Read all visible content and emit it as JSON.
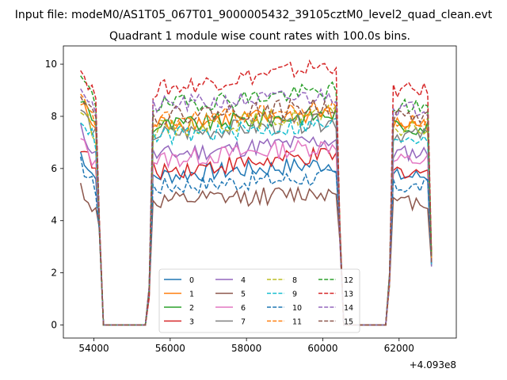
{
  "chart_data": {
    "type": "line",
    "suptitle": "Input file: modeM0/AS1T05_067T01_9000005432_39105cztM0_level2_quad_clean.evt",
    "title": "Quadrant 1 module wise count rates with 100.0s bins.",
    "xlabel": "",
    "ylabel": "",
    "x_offset_label": "+4.093e8",
    "xlim": [
      53200,
      63500
    ],
    "ylim": [
      -0.5,
      10.7
    ],
    "xticks": [
      54000,
      56000,
      58000,
      60000,
      62000
    ],
    "xtick_labels": [
      "54000",
      "56000",
      "58000",
      "60000",
      "62000"
    ],
    "yticks": [
      0,
      2,
      4,
      6,
      8,
      10
    ],
    "ytick_labels": [
      "0",
      "2",
      "4",
      "6",
      "8",
      "10"
    ],
    "grid": false,
    "legend": {
      "placement": "lower-center",
      "columns": 4
    },
    "time_profile": {
      "segments": [
        {
          "start": 53650,
          "end": 54050,
          "state": "on"
        },
        {
          "start": 54150,
          "end": 54250,
          "state": "falling"
        },
        {
          "start": 54250,
          "end": 55350,
          "state": "off"
        },
        {
          "start": 55450,
          "end": 55550,
          "state": "rising"
        },
        {
          "start": 55550,
          "end": 60350,
          "state": "on"
        },
        {
          "start": 60450,
          "end": 60550,
          "state": "falling"
        },
        {
          "start": 60550,
          "end": 61650,
          "state": "off"
        },
        {
          "start": 61750,
          "end": 61850,
          "state": "rising"
        },
        {
          "start": 61850,
          "end": 62750,
          "state": "on"
        },
        {
          "start": 62850,
          "end": 62850,
          "state": "end"
        }
      ],
      "bin_width": 100
    },
    "series": [
      {
        "name": "0",
        "color": "#1f77b4",
        "dash": "solid",
        "level1": 6.6,
        "level2": 5.7,
        "level3": 5.7,
        "trend": 0.5
      },
      {
        "name": "1",
        "color": "#ff7f0e",
        "dash": "solid",
        "level1": 8.5,
        "level2": 7.7,
        "level3": 7.7,
        "trend": 0.4
      },
      {
        "name": "2",
        "color": "#2ca02c",
        "dash": "solid",
        "level1": 8.7,
        "level2": 7.6,
        "level3": 7.6,
        "trend": 0.5
      },
      {
        "name": "3",
        "color": "#d62728",
        "dash": "solid",
        "level1": 6.9,
        "level2": 5.9,
        "level3": 5.9,
        "trend": 0.6
      },
      {
        "name": "4",
        "color": "#9467bd",
        "dash": "solid",
        "level1": 7.5,
        "level2": 6.5,
        "level3": 6.6,
        "trend": 0.6
      },
      {
        "name": "5",
        "color": "#8c564b",
        "dash": "solid",
        "level1": 5.3,
        "level2": 4.7,
        "level3": 4.7,
        "trend": 0.4
      },
      {
        "name": "6",
        "color": "#e377c2",
        "dash": "solid",
        "level1": 7.1,
        "level2": 6.3,
        "level3": 6.3,
        "trend": 0.6
      },
      {
        "name": "7",
        "color": "#7f7f7f",
        "dash": "solid",
        "level1": 8.3,
        "level2": 7.3,
        "level3": 7.3,
        "trend": 0.5
      },
      {
        "name": "8",
        "color": "#bcbd22",
        "dash": "dashed",
        "level1": 8.3,
        "level2": 7.5,
        "level3": 7.5,
        "trend": 0.6
      },
      {
        "name": "9",
        "color": "#17becf",
        "dash": "dashed",
        "level1": 8.0,
        "level2": 7.2,
        "level3": 7.2,
        "trend": 0.5
      },
      {
        "name": "10",
        "color": "#1f77b4",
        "dash": "dashed",
        "level1": 6.2,
        "level2": 5.3,
        "level3": 5.3,
        "trend": 0.4
      },
      {
        "name": "11",
        "color": "#ff7f0e",
        "dash": "dashed",
        "level1": 8.7,
        "level2": 7.8,
        "level3": 7.8,
        "trend": 0.5
      },
      {
        "name": "12",
        "color": "#2ca02c",
        "dash": "dashed",
        "level1": 9.5,
        "level2": 8.4,
        "level3": 8.4,
        "trend": 0.6
      },
      {
        "name": "13",
        "color": "#d62728",
        "dash": "dashed",
        "level1": 9.8,
        "level2": 9.0,
        "level3": 9.0,
        "trend": 1.0
      },
      {
        "name": "14",
        "color": "#9467bd",
        "dash": "dashed",
        "level1": 9.2,
        "level2": 8.4,
        "level3": 8.3,
        "trend": 0.4
      },
      {
        "name": "15",
        "color": "#8c564b",
        "dash": "dashed",
        "level1": 9.0,
        "level2": 8.0,
        "level3": 8.0,
        "trend": 0.4
      }
    ]
  }
}
